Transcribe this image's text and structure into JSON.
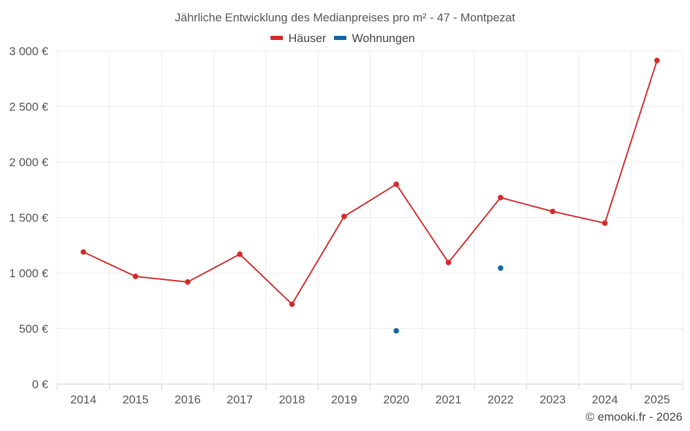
{
  "chart_data": {
    "type": "line",
    "title": "Jährliche Entwicklung des Medianpreises pro m² - 47 - Montpezat",
    "categories": [
      "2014",
      "2015",
      "2016",
      "2017",
      "2018",
      "2019",
      "2020",
      "2021",
      "2022",
      "2023",
      "2024",
      "2025"
    ],
    "series": [
      {
        "name": "Häuser",
        "color": "#d32a2a",
        "values": [
          1190,
          970,
          920,
          1170,
          720,
          1510,
          1800,
          1095,
          1680,
          1555,
          1450,
          2915
        ]
      },
      {
        "name": "Wohnungen",
        "color": "#1565a6",
        "values": [
          null,
          null,
          null,
          null,
          null,
          null,
          480,
          null,
          1045,
          null,
          null,
          null
        ]
      }
    ],
    "y_ticks": [
      "0 €",
      "500 €",
      "1 000 €",
      "1 500 €",
      "2 000 €",
      "2 500 €",
      "3 000 €"
    ],
    "y_tick_values": [
      0,
      500,
      1000,
      1500,
      2000,
      2500,
      3000
    ],
    "ylim": [
      0,
      3000
    ],
    "xlabel": "",
    "ylabel": "",
    "grid": true,
    "legend_position": "top-center"
  },
  "credit": "© emooki.fr - 2026"
}
